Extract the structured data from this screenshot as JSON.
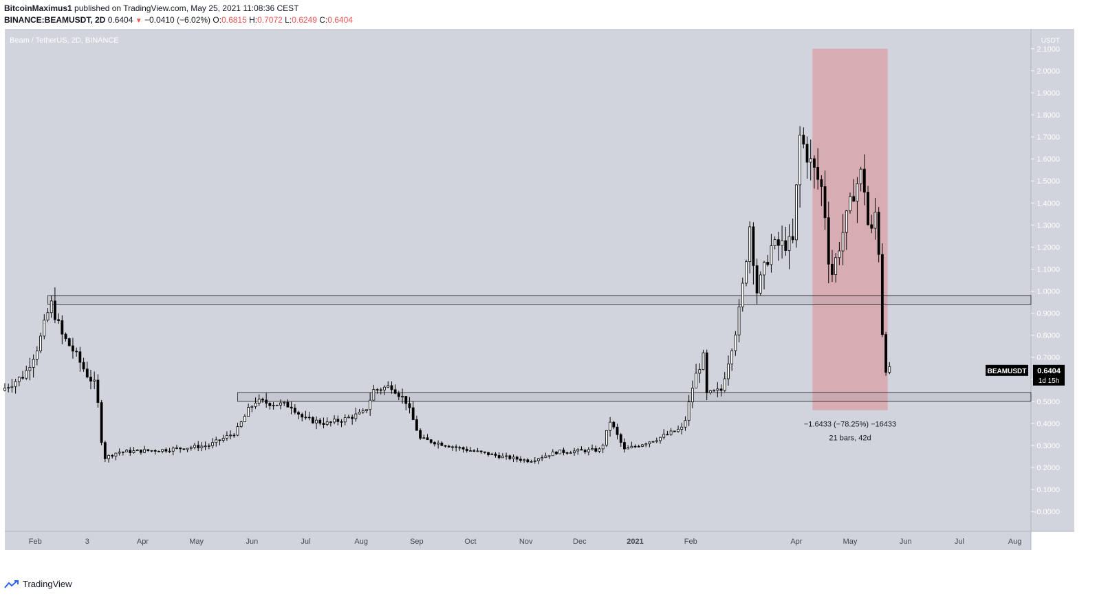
{
  "header": {
    "author": "BitcoinMaximus1",
    "published": "published on TradingView.com, May 25, 2021 11:08:36 CEST",
    "symbol": "BINANCE:BEAMUSDT, 2D",
    "last": "0.6404",
    "arrow": "▼",
    "change": "−0.0410 (−6.02%)",
    "o_label": "O:",
    "o_value": "0.6815",
    "h_label": "H:",
    "h_value": "0.7072",
    "l_label": "L:",
    "l_value": "0.6249",
    "c_label": "C:",
    "c_value": "0.6404"
  },
  "footer": {
    "brand": "TradingView"
  },
  "chart_data": {
    "type": "candlestick",
    "title": "Beam / TetherUS, 2D, BINANCE",
    "currency": "USDT",
    "y_ticks": [
      "2.1000",
      "2.0000",
      "1.9000",
      "1.8000",
      "1.7000",
      "1.6000",
      "1.5000",
      "1.4000",
      "1.3000",
      "1.2000",
      "1.1000",
      "1.0000",
      "0.9000",
      "0.8000",
      "0.7000",
      "0.6000",
      "0.5000",
      "0.4000",
      "0.3000",
      "0.2000",
      "0.1000",
      "-0.0000"
    ],
    "y_tick_values": [
      2.1,
      2.0,
      1.9,
      1.8,
      1.7,
      1.6,
      1.5,
      1.4,
      1.3,
      1.2,
      1.1,
      1.0,
      0.9,
      0.8,
      0.7,
      0.6,
      0.5,
      0.4,
      0.3,
      0.2,
      0.1,
      0.0
    ],
    "x_labels": [
      "Feb",
      "3",
      "Apr",
      "May",
      "Jun",
      "Jul",
      "Aug",
      "Sep",
      "Oct",
      "Nov",
      "Dec",
      "2021",
      "Feb",
      "Apr",
      "May",
      "Jun",
      "Jul",
      "Aug"
    ],
    "x_label_dates": [
      "2020-02-01",
      "2020-03-01",
      "2020-04-01",
      "2020-05-01",
      "2020-06-01",
      "2020-07-01",
      "2020-08-01",
      "2020-09-01",
      "2020-10-01",
      "2020-11-01",
      "2020-12-01",
      "2021-01-01",
      "2021-02-01",
      "2021-04-01",
      "2021-05-01",
      "2021-06-01",
      "2021-07-01",
      "2021-08-01"
    ],
    "x_range": [
      "2020-01-15",
      "2021-08-10"
    ],
    "ylim": [
      -0.09,
      2.19
    ],
    "price_path": [
      [
        "2020-01-15",
        0.55
      ],
      [
        "2020-01-28",
        0.62
      ],
      [
        "2020-02-05",
        0.76
      ],
      [
        "2020-02-10",
        0.9
      ],
      [
        "2020-02-12",
        0.94
      ],
      [
        "2020-02-18",
        0.8
      ],
      [
        "2020-02-25",
        0.72
      ],
      [
        "2020-03-03",
        0.62
      ],
      [
        "2020-03-08",
        0.57
      ],
      [
        "2020-03-12",
        0.24
      ],
      [
        "2020-03-20",
        0.27
      ],
      [
        "2020-04-15",
        0.28
      ],
      [
        "2020-05-10",
        0.3
      ],
      [
        "2020-05-25",
        0.36
      ],
      [
        "2020-06-01",
        0.46
      ],
      [
        "2020-06-05",
        0.5
      ],
      [
        "2020-06-25",
        0.48
      ],
      [
        "2020-07-02",
        0.42
      ],
      [
        "2020-07-15",
        0.4
      ],
      [
        "2020-07-25",
        0.42
      ],
      [
        "2020-08-05",
        0.45
      ],
      [
        "2020-08-10",
        0.55
      ],
      [
        "2020-08-20",
        0.57
      ],
      [
        "2020-08-28",
        0.5
      ],
      [
        "2020-09-05",
        0.33
      ],
      [
        "2020-10-01",
        0.28
      ],
      [
        "2020-10-20",
        0.25
      ],
      [
        "2020-11-05",
        0.23
      ],
      [
        "2020-11-20",
        0.27
      ],
      [
        "2020-12-15",
        0.28
      ],
      [
        "2020-12-20",
        0.41
      ],
      [
        "2020-12-28",
        0.28
      ],
      [
        "2021-01-15",
        0.33
      ],
      [
        "2021-01-30",
        0.38
      ],
      [
        "2021-02-05",
        0.6
      ],
      [
        "2021-02-10",
        0.7
      ],
      [
        "2021-02-12",
        0.53
      ],
      [
        "2021-02-20",
        0.55
      ],
      [
        "2021-02-28",
        0.82
      ],
      [
        "2021-03-03",
        0.95
      ],
      [
        "2021-03-08",
        1.3
      ],
      [
        "2021-03-12",
        1.0
      ],
      [
        "2021-03-20",
        1.2
      ],
      [
        "2021-04-01",
        1.22
      ],
      [
        "2021-04-05",
        1.7
      ],
      [
        "2021-04-10",
        1.6
      ],
      [
        "2021-04-18",
        1.45
      ],
      [
        "2021-04-22",
        1.05
      ],
      [
        "2021-04-30",
        1.3
      ],
      [
        "2021-05-05",
        1.45
      ],
      [
        "2021-05-10",
        1.55
      ],
      [
        "2021-05-14",
        1.22
      ],
      [
        "2021-05-18",
        1.4
      ],
      [
        "2021-05-20",
        0.97
      ],
      [
        "2021-05-22",
        0.66
      ],
      [
        "2021-05-24",
        0.64
      ]
    ],
    "last_price": {
      "symbol": "BEAMUSDT",
      "value": "0.6404",
      "countdown": "1d 15h"
    },
    "zones": [
      {
        "name": "resistance",
        "from": 0.94,
        "to": 0.98,
        "x0": "2020-02-08",
        "x1": "2021-08-10"
      },
      {
        "name": "support",
        "from": 0.5,
        "to": 0.54,
        "x0": "2020-05-24",
        "x1": "2021-08-10"
      }
    ],
    "measure": {
      "x0": "2021-04-10",
      "x1": "2021-05-22",
      "y_top": 2.1,
      "y_bottom": 0.46,
      "label1": "−1.6433 (−78.25%) −16433",
      "label2": "21 bars, 42d",
      "color": "#d9a4ab"
    },
    "colors": {
      "background": "#d1d4dc",
      "candle": "#000000",
      "bull_body": "#ffffff"
    }
  }
}
